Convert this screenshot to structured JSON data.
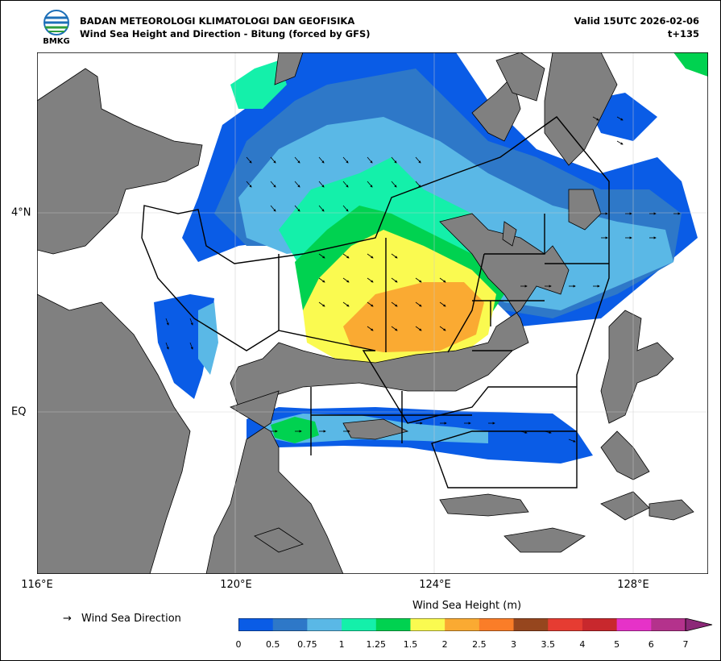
{
  "header": {
    "agency": "BADAN METEOROLOGI KLIMATOLOGI DAN GEOFISIKA",
    "title": "Wind Sea Height and Direction - Bitung (forced by GFS)",
    "valid": "Valid 15UTC 2026-02-06",
    "step": "t+135",
    "logo_text": "BMKG"
  },
  "map": {
    "lon_ticks": [
      "116°E",
      "120°E",
      "124°E",
      "128°E"
    ],
    "lat_ticks": [
      "4°N",
      "EQ"
    ],
    "gridlines": true,
    "land_color": "#808080",
    "sea_color": "#ffffff"
  },
  "legend": {
    "arrow_glyph": "→",
    "direction_label": "Wind Sea Direction"
  },
  "colorbar": {
    "title": "Wind Sea Height (m)",
    "ticks": [
      "0",
      "0.5",
      "0.75",
      "1",
      "1.25",
      "1.5",
      "2",
      "2.5",
      "3",
      "3.5",
      "4",
      "5",
      "6",
      "7"
    ],
    "colors": [
      "#0a5ce6",
      "#2e78c8",
      "#5ab8e6",
      "#14f0aa",
      "#00d250",
      "#fafa50",
      "#faaa32",
      "#fa7d28",
      "#96461e",
      "#e63c32",
      "#c8282d",
      "#e632c8",
      "#b4328c"
    ],
    "extend_color": "#8c2878"
  }
}
